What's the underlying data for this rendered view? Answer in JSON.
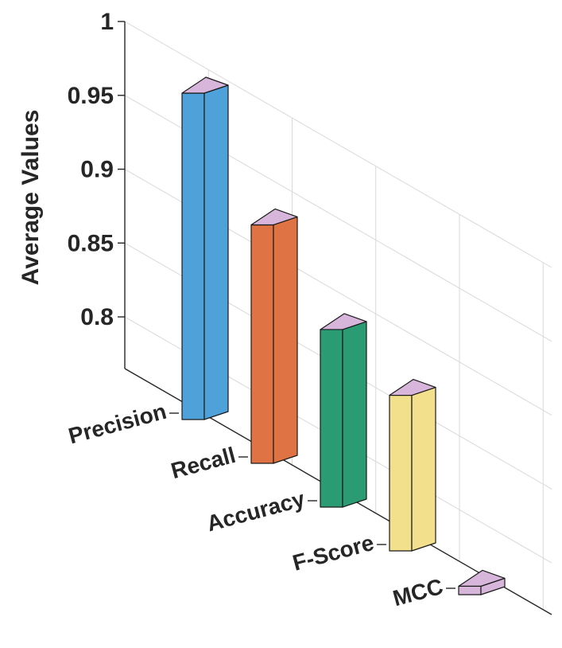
{
  "chart_data": {
    "type": "bar",
    "style": "3d",
    "title": "",
    "xlabel": "",
    "ylabel": "Average Values",
    "ylim": [
      0.765,
      1.0
    ],
    "yticks": [
      "0.8",
      "0.85",
      "0.9",
      "0.95",
      "1"
    ],
    "grid": true,
    "categories": [
      "Precision",
      "Recall",
      "Accuracy",
      "F-Score",
      "MCC"
    ],
    "values": [
      0.958,
      0.906,
      0.87,
      0.857,
      0.77
    ],
    "bar_colors": [
      "#4ea1d9",
      "#e07344",
      "#2a9b72",
      "#f2e08c",
      "#d8b6dc"
    ],
    "top_color": "#d8b6dc"
  }
}
